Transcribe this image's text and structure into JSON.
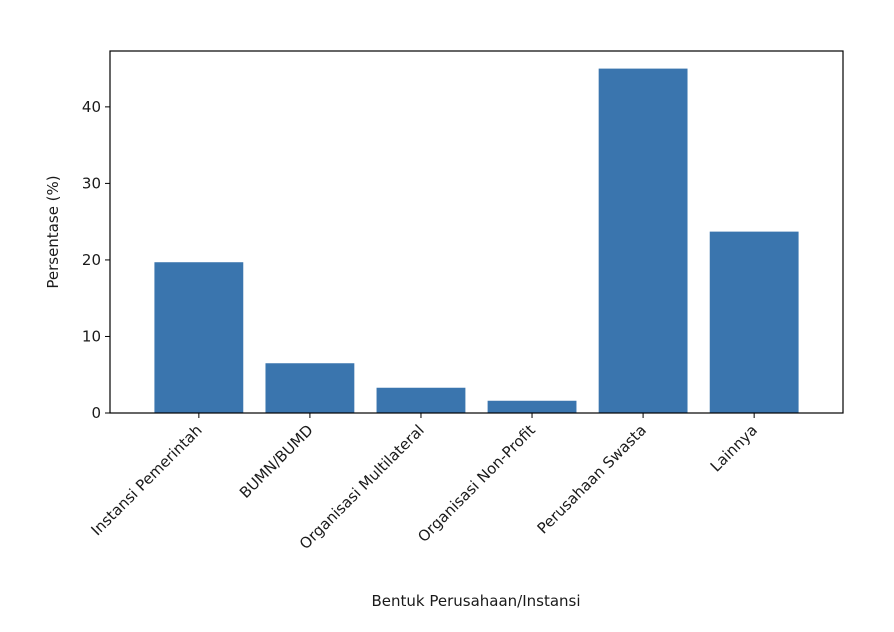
{
  "chart_data": {
    "type": "bar",
    "title": "",
    "xlabel": "Bentuk Perusahaan/Instansi",
    "ylabel": "Persentase (%)",
    "categories": [
      "Instansi Pemerintah",
      "BUMN/BUMD",
      "Organisasi Multilateral",
      "Organisasi Non-Profit",
      "Perusahaan Swasta",
      "Lainnya"
    ],
    "values": [
      19.7,
      6.5,
      3.3,
      1.6,
      45.0,
      23.7
    ],
    "ylim": [
      0,
      47.3
    ],
    "yticks": [
      0,
      10,
      20,
      30,
      40
    ],
    "grid": false,
    "bar_color": "#3a75ae",
    "axis_color": "#000000"
  }
}
